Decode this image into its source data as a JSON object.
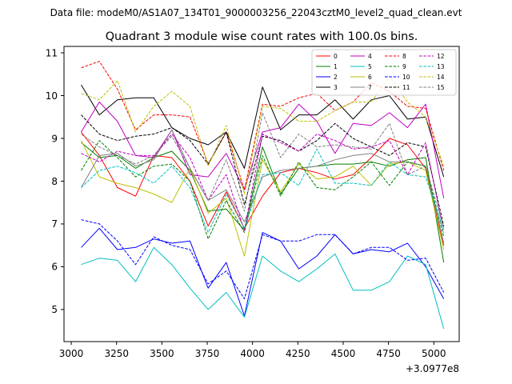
{
  "suptitle": "Data file: modeM0/AS1A07_134T01_9000003256_22043cztM0_level2_quad_clean.evt",
  "chart_data": {
    "type": "line",
    "title": "Quadrant 3 module wise count rates with 100.0s bins.",
    "xlabel": "",
    "ylabel": "",
    "x_offset_label": "+3.0977e8",
    "xlim": [
      2960,
      5140
    ],
    "ylim": [
      4.25,
      11.15
    ],
    "xticks": [
      3000,
      3250,
      3500,
      3750,
      4000,
      4250,
      4500,
      4750,
      5000
    ],
    "yticks": [
      5,
      6,
      7,
      8,
      9,
      10,
      11
    ],
    "x": [
      3055,
      3155,
      3255,
      3355,
      3455,
      3555,
      3655,
      3755,
      3855,
      3955,
      4055,
      4155,
      4255,
      4355,
      4455,
      4555,
      4655,
      4755,
      4855,
      4955,
      5055
    ],
    "legend_position": "top-right",
    "legend_columns": 4,
    "series": [
      {
        "name": "0",
        "color": "#ff0000",
        "dash": "solid",
        "values": [
          9.15,
          8.6,
          7.85,
          7.65,
          8.6,
          8.55,
          8.0,
          6.95,
          7.75,
          6.9,
          7.65,
          8.2,
          8.3,
          8.2,
          8.05,
          8.15,
          8.55,
          9.0,
          8.85,
          8.3,
          6.5
        ]
      },
      {
        "name": "1",
        "color": "#008000",
        "dash": "solid",
        "values": [
          8.9,
          8.55,
          8.6,
          8.3,
          8.55,
          8.7,
          8.25,
          7.3,
          7.35,
          6.85,
          8.8,
          7.7,
          8.3,
          8.35,
          8.4,
          8.4,
          8.45,
          8.35,
          8.5,
          8.55,
          6.1
        ]
      },
      {
        "name": "2",
        "color": "#0000ff",
        "dash": "solid",
        "values": [
          6.45,
          6.9,
          6.4,
          6.45,
          6.65,
          6.55,
          6.6,
          5.5,
          6.1,
          4.85,
          6.8,
          6.6,
          5.95,
          6.25,
          6.75,
          6.3,
          6.4,
          6.35,
          6.55,
          6.0,
          5.25
        ]
      },
      {
        "name": "3",
        "color": "#000000",
        "dash": "solid",
        "values": [
          10.25,
          9.55,
          9.9,
          9.95,
          9.95,
          9.25,
          9.0,
          8.85,
          9.15,
          8.3,
          10.2,
          9.2,
          9.55,
          9.55,
          9.9,
          9.45,
          9.9,
          10.0,
          9.45,
          9.5,
          8.1
        ]
      },
      {
        "name": "4",
        "color": "#c000c0",
        "dash": "solid",
        "values": [
          9.15,
          9.85,
          9.4,
          8.6,
          8.55,
          9.2,
          8.15,
          8.1,
          8.65,
          7.8,
          9.15,
          9.25,
          9.8,
          9.4,
          8.65,
          9.35,
          9.3,
          9.6,
          9.25,
          9.8,
          7.6
        ]
      },
      {
        "name": "5",
        "color": "#00bfbf",
        "dash": "solid",
        "values": [
          6.05,
          6.2,
          6.15,
          5.65,
          6.45,
          6.05,
          5.5,
          5.0,
          5.4,
          4.82,
          6.25,
          5.9,
          5.65,
          5.95,
          6.3,
          5.45,
          5.45,
          5.65,
          6.25,
          6.05,
          4.55
        ]
      },
      {
        "name": "6",
        "color": "#bfbf00",
        "dash": "solid",
        "values": [
          8.95,
          8.1,
          7.95,
          7.85,
          7.7,
          7.5,
          8.3,
          7.25,
          7.6,
          6.25,
          8.5,
          7.75,
          8.4,
          8.05,
          8.1,
          8.35,
          7.9,
          8.4,
          8.45,
          8.25,
          6.4
        ]
      },
      {
        "name": "7",
        "color": "#808080",
        "dash": "solid",
        "values": [
          7.85,
          8.6,
          8.65,
          8.35,
          8.5,
          9.2,
          8.3,
          7.55,
          7.8,
          7.05,
          8.1,
          8.25,
          8.3,
          8.35,
          8.5,
          8.6,
          8.65,
          8.45,
          8.45,
          8.35,
          6.55
        ]
      },
      {
        "name": "8",
        "color": "#ff0000",
        "dash": "dashed",
        "values": [
          10.65,
          10.8,
          10.15,
          9.2,
          9.55,
          9.55,
          9.5,
          8.4,
          9.15,
          7.8,
          9.8,
          9.75,
          9.95,
          10.05,
          9.65,
          9.85,
          10.3,
          10.1,
          9.75,
          9.7,
          8.25
        ]
      },
      {
        "name": "9",
        "color": "#008000",
        "dash": "dashed",
        "values": [
          8.25,
          8.95,
          8.55,
          8.1,
          8.35,
          8.4,
          8.0,
          6.65,
          7.55,
          6.8,
          8.6,
          7.65,
          8.45,
          7.85,
          7.8,
          8.1,
          8.45,
          7.9,
          8.45,
          8.35,
          6.7
        ]
      },
      {
        "name": "10",
        "color": "#0000ff",
        "dash": "dashed",
        "values": [
          7.1,
          7.0,
          6.6,
          6.05,
          6.7,
          6.5,
          6.4,
          5.6,
          5.9,
          5.25,
          6.75,
          6.6,
          6.6,
          6.75,
          6.75,
          6.3,
          6.45,
          6.45,
          6.15,
          6.2,
          5.4
        ]
      },
      {
        "name": "11",
        "color": "#000000",
        "dash": "dashed",
        "values": [
          9.55,
          9.1,
          8.95,
          9.05,
          9.1,
          9.25,
          8.95,
          8.4,
          9.15,
          7.45,
          9.05,
          8.95,
          8.7,
          8.95,
          9.35,
          9.0,
          8.8,
          8.6,
          8.9,
          8.8,
          6.95
        ]
      },
      {
        "name": "12",
        "color": "#c000c0",
        "dash": "dashed",
        "values": [
          8.65,
          8.45,
          8.7,
          8.6,
          8.6,
          9.1,
          8.55,
          7.55,
          8.15,
          6.85,
          9.1,
          8.9,
          8.7,
          9.1,
          8.95,
          8.75,
          8.8,
          8.95,
          8.15,
          8.9,
          6.8
        ]
      },
      {
        "name": "13",
        "color": "#00bfbf",
        "dash": "dashed",
        "values": [
          7.85,
          8.25,
          8.35,
          8.2,
          7.95,
          8.35,
          7.85,
          6.8,
          7.7,
          6.9,
          8.15,
          8.2,
          7.9,
          8.75,
          7.95,
          7.95,
          7.9,
          8.45,
          8.15,
          8.1,
          6.85
        ]
      },
      {
        "name": "14",
        "color": "#bfbf00",
        "dash": "dashed",
        "values": [
          10.05,
          9.9,
          10.35,
          9.15,
          9.75,
          10.1,
          9.75,
          8.35,
          9.3,
          7.7,
          9.75,
          9.7,
          9.4,
          9.4,
          9.65,
          9.85,
          9.85,
          10.45,
          9.85,
          9.5,
          8.35
        ]
      },
      {
        "name": "15",
        "color": "#808080",
        "dash": "dashed",
        "values": [
          9.1,
          8.8,
          8.6,
          8.4,
          8.6,
          9.05,
          8.3,
          7.55,
          8.5,
          7.3,
          9.6,
          8.55,
          9.1,
          8.8,
          8.85,
          8.8,
          8.75,
          9.35,
          8.15,
          8.35,
          6.9
        ]
      }
    ]
  }
}
